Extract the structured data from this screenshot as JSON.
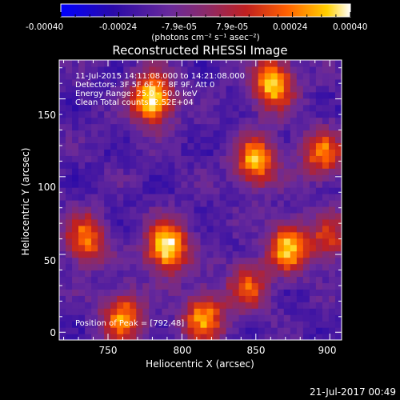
{
  "colorbar": {
    "tick_labels": [
      "-0.00040",
      "-0.00024",
      "-7.9e-05",
      "7.9e-05",
      "0.00024",
      "0.00040"
    ],
    "tick_values": [
      -0.0004,
      -0.00024,
      -7.9e-05,
      7.9e-05,
      0.00024,
      0.0004
    ],
    "range": [
      -0.0004,
      0.0004
    ],
    "unit_label": "(photons cm⁻² s⁻¹ asec⁻²)",
    "colors": [
      "#0000ff",
      "#2a0aa8",
      "#6a2a9a",
      "#8a2a6a",
      "#c02020",
      "#ff6000",
      "#ffd000",
      "#ffffff"
    ]
  },
  "chart_data": {
    "type": "heatmap",
    "title": "Reconstructed RHESSI Image",
    "xlabel": "Heliocentric X (arcsec)",
    "ylabel": "Heliocentric Y (arcsec)",
    "xlim": [
      717,
      908
    ],
    "ylim": [
      -5,
      175
    ],
    "xticks": [
      750,
      800,
      850,
      900
    ],
    "yticks": [
      0,
      50,
      100,
      150
    ],
    "info_lines": [
      "11-Jul-2015 14:11:08.000 to 14:21:08.000",
      "Detectors: 3F 5F 6F 7F 8F 9F, Att 0",
      "Energy Range: 25.0 - 50.0 keV",
      "Clean     Total counts: 2.52E+04"
    ],
    "peak_label": "Position of Peak = [792,48]",
    "peak_position": [
      792,
      48
    ],
    "hot_regions": [
      {
        "x": 780,
        "y": 150,
        "level": 1.0
      },
      {
        "x": 790,
        "y": 55,
        "level": 1.0
      },
      {
        "x": 862,
        "y": 160,
        "level": 0.9
      },
      {
        "x": 850,
        "y": 110,
        "level": 0.8
      },
      {
        "x": 872,
        "y": 55,
        "level": 0.8
      },
      {
        "x": 895,
        "y": 115,
        "level": 0.65
      },
      {
        "x": 735,
        "y": 60,
        "level": 0.7
      },
      {
        "x": 760,
        "y": 10,
        "level": 0.75
      },
      {
        "x": 815,
        "y": 10,
        "level": 0.75
      },
      {
        "x": 845,
        "y": 30,
        "level": 0.55
      },
      {
        "x": 900,
        "y": 60,
        "level": 0.5
      }
    ]
  },
  "footer": {
    "timestamp": "21-Jul-2017 00:49"
  }
}
